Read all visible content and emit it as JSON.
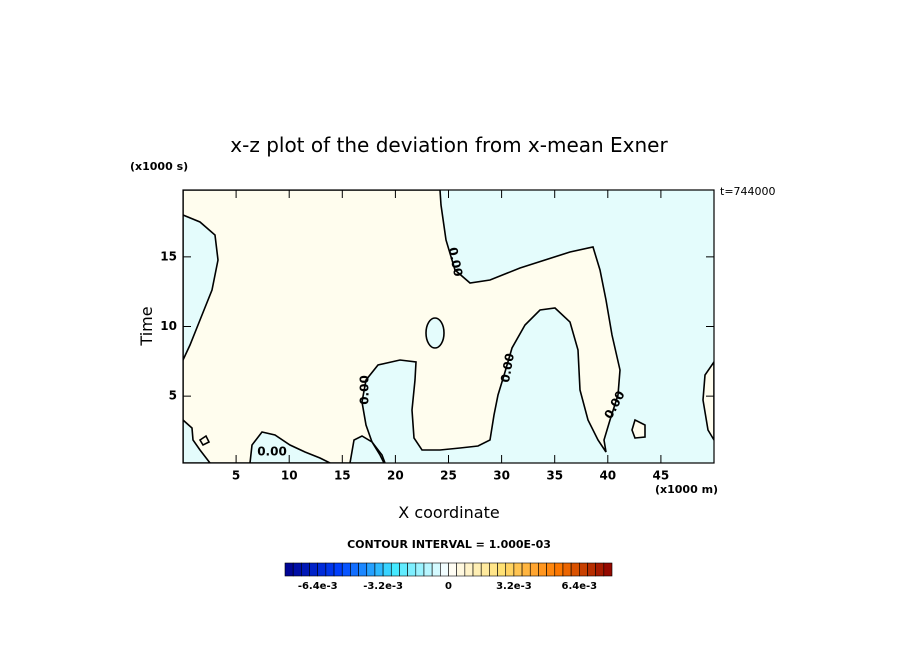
{
  "chart_data": {
    "type": "contour",
    "title": "x-z plot of the deviation from x-mean Exner",
    "x_label": "X coordinate",
    "y_label": "Time",
    "x_unit": "(x1000 m)",
    "y_unit": "(x1000 s)",
    "time_label": "t=744000",
    "contour_interval": "CONTOUR INTERVAL = 1.000E-03",
    "contour_level": {
      "value": 0,
      "label": "0.00"
    },
    "xlim": [
      0,
      50
    ],
    "xticks": [
      5,
      10,
      15,
      20,
      25,
      30,
      35,
      40,
      45
    ],
    "ylim": [
      0.2,
      19.8
    ],
    "yticks": [
      5,
      10,
      15
    ],
    "fill_positive": "#fffdee",
    "fill_negative": "#e4fcfc",
    "colorbar": {
      "lim": [
        -0.008,
        0.008
      ],
      "ticks": [
        {
          "value": -0.0064,
          "label": "-6.4e-3"
        },
        {
          "value": -0.0032,
          "label": "-3.2e-3"
        },
        0,
        {
          "value": 0.0032,
          "label": "3.2e-3"
        },
        {
          "value": 0.0064,
          "label": "6.4e-3"
        }
      ],
      "colors": [
        "#00008c",
        "#0040ff",
        "#40e8ff",
        "#ffffff",
        "#ffe070",
        "#ff7a00",
        "#8c0000"
      ]
    }
  }
}
